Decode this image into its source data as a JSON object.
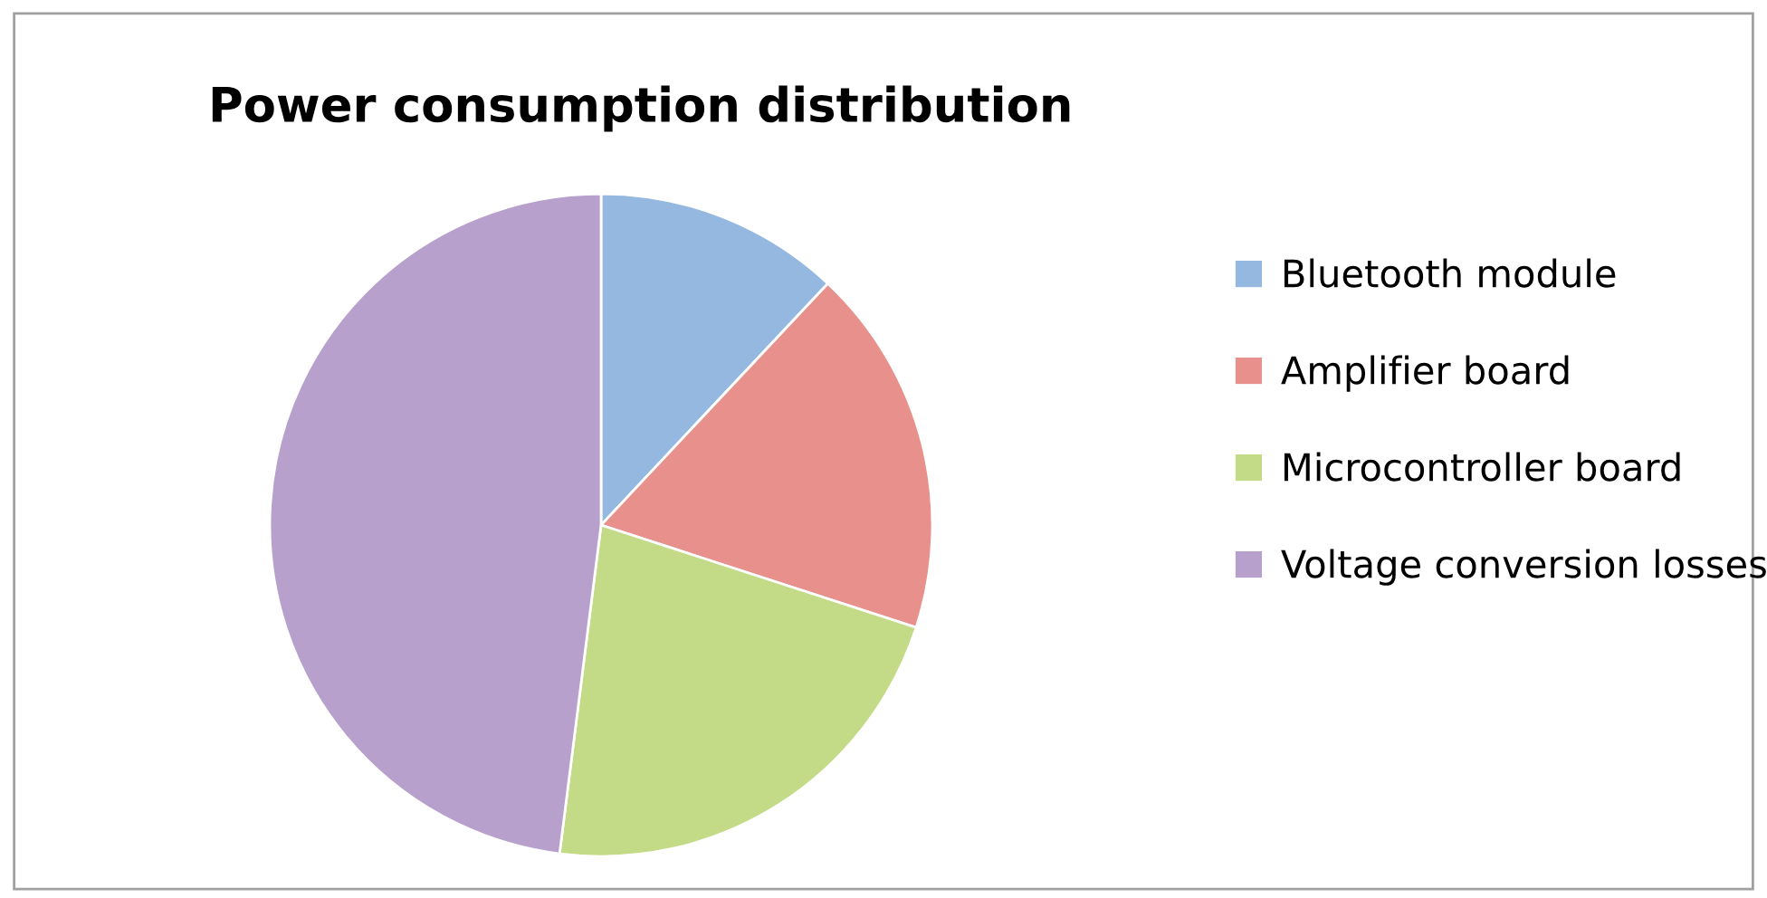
{
  "chart_data": {
    "type": "pie",
    "title": "Power consumption distribution",
    "categories": [
      "Bluetooth module",
      "Amplifier board",
      "Microcontroller board",
      "Voltage conversion losses"
    ],
    "values": [
      12,
      18,
      22,
      48
    ],
    "colors": [
      "#95b8e0",
      "#e8908c",
      "#c3da86",
      "#b7a0cc"
    ],
    "legend": "right"
  }
}
